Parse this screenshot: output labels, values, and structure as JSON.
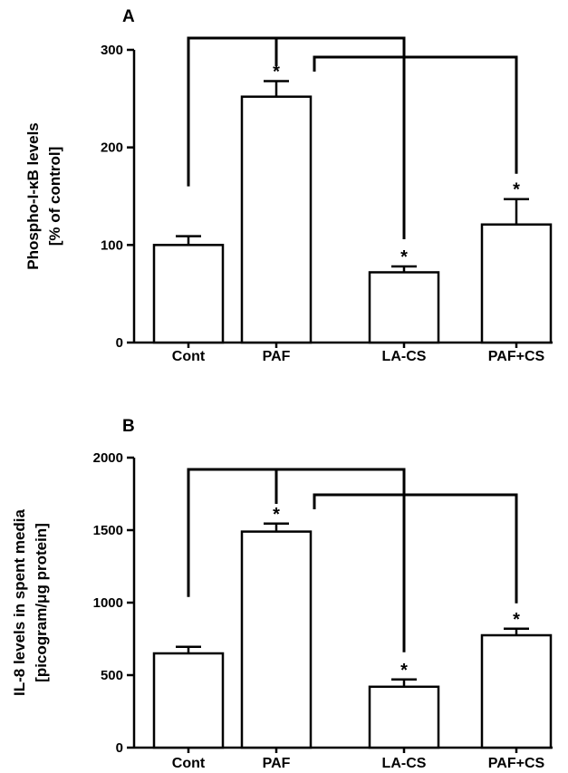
{
  "chart_data": [
    {
      "type": "bar",
      "panel": "A",
      "categories": [
        "Cont",
        "PAF",
        "LA-CS",
        "PAF+CS"
      ],
      "values": [
        100,
        252,
        72,
        121
      ],
      "errors": [
        9,
        16,
        6,
        26
      ],
      "significant": [
        false,
        true,
        true,
        true
      ],
      "ylabel_line1": "Phospho-I-κB levels",
      "ylabel_line2": "[% of control]",
      "ylim": [
        0,
        300
      ],
      "yticks": [
        0,
        100,
        200,
        300
      ],
      "brackets": [
        [
          "Cont",
          "LA-CS"
        ],
        [
          "PAF",
          "PAF+CS"
        ]
      ],
      "grid": false,
      "legend": "none"
    },
    {
      "type": "bar",
      "panel": "B",
      "categories": [
        "Cont",
        "PAF",
        "LA-CS",
        "PAF+CS"
      ],
      "values": [
        650,
        1490,
        420,
        775
      ],
      "errors": [
        45,
        55,
        50,
        45
      ],
      "significant": [
        false,
        true,
        true,
        true
      ],
      "ylabel_line1": "IL-8 levels in spent media",
      "ylabel_line2": "[picogram/μg protein]",
      "ylim": [
        0,
        2000
      ],
      "yticks": [
        0,
        500,
        1000,
        1500,
        2000
      ],
      "brackets": [
        [
          "Cont",
          "LA-CS"
        ],
        [
          "PAF",
          "PAF+CS"
        ]
      ],
      "grid": false,
      "legend": "none"
    }
  ],
  "significance_marker": "*"
}
